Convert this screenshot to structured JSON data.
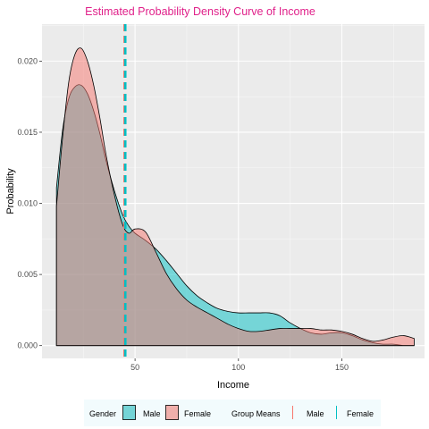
{
  "chart_data": {
    "type": "area",
    "title": "Estimated Probability Density Curve of Income",
    "xlabel": "Income",
    "ylabel": "Probability",
    "xlim": [
      5,
      190
    ],
    "ylim": [
      -0.0009,
      0.0226
    ],
    "x_ticks": [
      50,
      100,
      150
    ],
    "x_tick_labels": [
      "50",
      "100",
      "150"
    ],
    "y_ticks": [
      0.0,
      0.005,
      0.01,
      0.015,
      0.02
    ],
    "y_tick_labels": [
      "0.000",
      "0.005",
      "0.010",
      "0.015",
      "0.020"
    ],
    "grid": true,
    "legend_position": "bottom",
    "series": [
      {
        "name": "Male",
        "color": "#00BFC4",
        "x": [
          12,
          15,
          18,
          21,
          24,
          27,
          30,
          33,
          36,
          40,
          44,
          47,
          50,
          55,
          60,
          65,
          70,
          75,
          80,
          85,
          90,
          95,
          100,
          105,
          110,
          115,
          120,
          125,
          130,
          135,
          140,
          145,
          150,
          155,
          160,
          165,
          170,
          175,
          180,
          185
        ],
        "y": [
          0.0111,
          0.0152,
          0.0174,
          0.0182,
          0.0183,
          0.0177,
          0.0165,
          0.0149,
          0.013,
          0.0109,
          0.0092,
          0.0084,
          0.0079,
          0.0074,
          0.0068,
          0.006,
          0.0051,
          0.0042,
          0.0035,
          0.003,
          0.0026,
          0.0024,
          0.0023,
          0.0023,
          0.0023,
          0.0023,
          0.0021,
          0.0016,
          0.0012,
          0.0009,
          0.0008,
          0.0009,
          0.0009,
          0.0007,
          0.0004,
          0.0002,
          0.0001,
          0.0001,
          0.0,
          0.0
        ]
      },
      {
        "name": "Female",
        "color": "#F8766D",
        "x": [
          12,
          15,
          18,
          21,
          24,
          27,
          30,
          33,
          36,
          40,
          44,
          47,
          50,
          55,
          60,
          65,
          70,
          75,
          80,
          85,
          90,
          95,
          100,
          105,
          110,
          115,
          120,
          125,
          130,
          135,
          140,
          145,
          150,
          155,
          160,
          165,
          170,
          175,
          180,
          185
        ],
        "y": [
          0.0098,
          0.0147,
          0.0186,
          0.0205,
          0.0209,
          0.02,
          0.0183,
          0.016,
          0.0134,
          0.0106,
          0.0085,
          0.0079,
          0.0082,
          0.008,
          0.0066,
          0.0051,
          0.004,
          0.0032,
          0.0027,
          0.0023,
          0.0019,
          0.0015,
          0.0012,
          0.001,
          0.001,
          0.0011,
          0.0012,
          0.0012,
          0.0012,
          0.0012,
          0.0011,
          0.0011,
          0.001,
          0.0008,
          0.0005,
          0.0003,
          0.0004,
          0.0006,
          0.0007,
          0.0005
        ]
      }
    ],
    "group_means": [
      {
        "name": "Male",
        "value": 44.9,
        "color": "#F8766D"
      },
      {
        "name": "Female",
        "value": 45.3,
        "color": "#00BFC4"
      }
    ],
    "legend": {
      "gender_title": "Gender",
      "gender_items": [
        "Male",
        "Female"
      ],
      "means_title": "Group Means",
      "means_items": [
        "Male",
        "Female"
      ]
    }
  }
}
